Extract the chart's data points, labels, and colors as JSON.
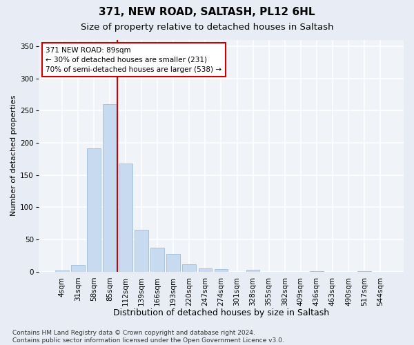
{
  "title1": "371, NEW ROAD, SALTASH, PL12 6HL",
  "title2": "Size of property relative to detached houses in Saltash",
  "xlabel": "Distribution of detached houses by size in Saltash",
  "ylabel": "Number of detached properties",
  "bar_labels": [
    "4sqm",
    "31sqm",
    "58sqm",
    "85sqm",
    "112sqm",
    "139sqm",
    "166sqm",
    "193sqm",
    "220sqm",
    "247sqm",
    "274sqm",
    "301sqm",
    "328sqm",
    "355sqm",
    "382sqm",
    "409sqm",
    "436sqm",
    "463sqm",
    "490sqm",
    "517sqm",
    "544sqm"
  ],
  "bar_values": [
    2,
    10,
    191,
    260,
    168,
    65,
    37,
    28,
    11,
    5,
    4,
    0,
    3,
    0,
    0,
    0,
    1,
    0,
    0,
    1,
    0
  ],
  "bar_color": "#c8daef",
  "bar_edge_color": "#a0bcd8",
  "vline_x_index": 3,
  "vline_color": "#cc0000",
  "annotation_line1": "371 NEW ROAD: 89sqm",
  "annotation_line2": "← 30% of detached houses are smaller (231)",
  "annotation_line3": "70% of semi-detached houses are larger (538) →",
  "annotation_box_color": "white",
  "annotation_box_edge": "#cc0000",
  "ylim": [
    0,
    360
  ],
  "yticks": [
    0,
    50,
    100,
    150,
    200,
    250,
    300,
    350
  ],
  "bg_color": "#e8edf5",
  "plot_bg_color": "#f0f3f8",
  "grid_color": "white",
  "footnote": "Contains HM Land Registry data © Crown copyright and database right 2024.\nContains public sector information licensed under the Open Government Licence v3.0.",
  "title1_fontsize": 11,
  "title2_fontsize": 9.5,
  "xlabel_fontsize": 9,
  "ylabel_fontsize": 8,
  "tick_fontsize": 7.5,
  "footnote_fontsize": 6.5
}
